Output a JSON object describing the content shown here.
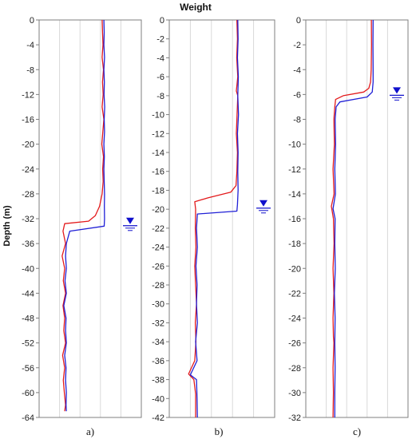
{
  "figure": {
    "title": "Weight",
    "ylabel": "Depth (m)",
    "colors": {
      "series_1": "#e31a1c",
      "series_2": "#1f1fd6",
      "water_table": "#1010cc",
      "grid": "#d9d9d9",
      "frame": "#7f7f7f"
    }
  },
  "chart_data": [
    {
      "type": "line",
      "panel": "a)",
      "ylim": [
        -64,
        0
      ],
      "yticks": [
        0,
        -4,
        -8,
        -12,
        -16,
        -20,
        -24,
        -28,
        -32,
        -36,
        -40,
        -44,
        -48,
        -52,
        -56,
        -60,
        -64
      ],
      "xlim": [
        0,
        6
      ],
      "grid": true,
      "water_table_depth": -33,
      "series": [
        {
          "color": "#e31a1c",
          "points": [
            [
              3.7,
              0
            ],
            [
              3.72,
              -2
            ],
            [
              3.75,
              -4
            ],
            [
              3.7,
              -6
            ],
            [
              3.78,
              -8
            ],
            [
              3.72,
              -10
            ],
            [
              3.76,
              -12
            ],
            [
              3.7,
              -14
            ],
            [
              3.8,
              -16
            ],
            [
              3.74,
              -18
            ],
            [
              3.68,
              -20
            ],
            [
              3.78,
              -22
            ],
            [
              3.73,
              -24
            ],
            [
              3.76,
              -26
            ],
            [
              3.7,
              -28
            ],
            [
              3.55,
              -30
            ],
            [
              3.3,
              -31.5
            ],
            [
              2.9,
              -32.4
            ],
            [
              1.5,
              -32.8
            ],
            [
              1.4,
              -34
            ],
            [
              1.55,
              -36
            ],
            [
              1.35,
              -38
            ],
            [
              1.5,
              -40
            ],
            [
              1.42,
              -42
            ],
            [
              1.55,
              -44
            ],
            [
              1.4,
              -46
            ],
            [
              1.5,
              -48
            ],
            [
              1.45,
              -50
            ],
            [
              1.55,
              -52
            ],
            [
              1.38,
              -54
            ],
            [
              1.5,
              -56
            ],
            [
              1.42,
              -58
            ],
            [
              1.48,
              -60
            ],
            [
              1.55,
              -62
            ],
            [
              1.5,
              -63
            ]
          ]
        },
        {
          "color": "#1f1fd6",
          "points": [
            [
              3.8,
              0
            ],
            [
              3.82,
              -2
            ],
            [
              3.8,
              -4
            ],
            [
              3.84,
              -6
            ],
            [
              3.8,
              -8
            ],
            [
              3.83,
              -10
            ],
            [
              3.81,
              -12
            ],
            [
              3.85,
              -14
            ],
            [
              3.82,
              -16
            ],
            [
              3.84,
              -18
            ],
            [
              3.8,
              -20
            ],
            [
              3.83,
              -22
            ],
            [
              3.8,
              -24
            ],
            [
              3.82,
              -26
            ],
            [
              3.84,
              -28
            ],
            [
              3.83,
              -30
            ],
            [
              3.84,
              -32
            ],
            [
              3.82,
              -33.2
            ],
            [
              1.8,
              -34
            ],
            [
              1.6,
              -36
            ],
            [
              1.55,
              -38
            ],
            [
              1.6,
              -40
            ],
            [
              1.52,
              -42
            ],
            [
              1.6,
              -44
            ],
            [
              1.45,
              -46
            ],
            [
              1.58,
              -48
            ],
            [
              1.55,
              -50
            ],
            [
              1.6,
              -52
            ],
            [
              1.5,
              -54
            ],
            [
              1.58,
              -56
            ],
            [
              1.55,
              -58
            ],
            [
              1.6,
              -60
            ],
            [
              1.58,
              -62
            ],
            [
              1.6,
              -63
            ]
          ]
        }
      ]
    },
    {
      "type": "line",
      "panel": "b)",
      "ylim": [
        -42,
        0
      ],
      "yticks": [
        0,
        -2,
        -4,
        -6,
        -8,
        -10,
        -12,
        -14,
        -16,
        -18,
        -20,
        -22,
        -24,
        -26,
        -28,
        -30,
        -32,
        -34,
        -36,
        -38,
        -40,
        -42
      ],
      "xlim": [
        0,
        6
      ],
      "grid": true,
      "water_table_depth": -19.8,
      "series": [
        {
          "color": "#e31a1c",
          "points": [
            [
              3.85,
              0
            ],
            [
              3.88,
              -2
            ],
            [
              3.84,
              -4
            ],
            [
              3.9,
              -6
            ],
            [
              3.82,
              -7.5
            ],
            [
              3.9,
              -8
            ],
            [
              3.86,
              -10
            ],
            [
              3.82,
              -12
            ],
            [
              3.88,
              -14
            ],
            [
              3.85,
              -16
            ],
            [
              3.8,
              -17.5
            ],
            [
              3.5,
              -18.2
            ],
            [
              2.2,
              -18.8
            ],
            [
              1.45,
              -19.2
            ],
            [
              1.5,
              -20
            ],
            [
              1.48,
              -22
            ],
            [
              1.52,
              -24
            ],
            [
              1.45,
              -26
            ],
            [
              1.5,
              -28
            ],
            [
              1.55,
              -30
            ],
            [
              1.48,
              -32
            ],
            [
              1.52,
              -34
            ],
            [
              1.45,
              -36
            ],
            [
              1.1,
              -37.4
            ],
            [
              1.4,
              -38
            ],
            [
              1.5,
              -39.5
            ],
            [
              1.5,
              -42
            ]
          ]
        },
        {
          "color": "#1f1fd6",
          "points": [
            [
              3.9,
              0
            ],
            [
              3.92,
              -2
            ],
            [
              3.88,
              -4
            ],
            [
              3.93,
              -6
            ],
            [
              3.9,
              -8
            ],
            [
              3.94,
              -10
            ],
            [
              3.88,
              -12
            ],
            [
              3.92,
              -14
            ],
            [
              3.9,
              -16
            ],
            [
              3.92,
              -18
            ],
            [
              3.88,
              -19.5
            ],
            [
              3.85,
              -20.2
            ],
            [
              1.6,
              -20.5
            ],
            [
              1.55,
              -22
            ],
            [
              1.6,
              -24
            ],
            [
              1.52,
              -26
            ],
            [
              1.58,
              -28
            ],
            [
              1.55,
              -30
            ],
            [
              1.6,
              -32
            ],
            [
              1.5,
              -34
            ],
            [
              1.58,
              -36
            ],
            [
              1.2,
              -37.5
            ],
            [
              1.55,
              -38
            ],
            [
              1.58,
              -40
            ],
            [
              1.6,
              -42
            ]
          ]
        }
      ]
    },
    {
      "type": "line",
      "panel": "c)",
      "ylim": [
        -32,
        0
      ],
      "yticks": [
        0,
        -2,
        -4,
        -6,
        -8,
        -10,
        -12,
        -14,
        -16,
        -18,
        -20,
        -22,
        -24,
        -26,
        -28,
        -30,
        -32
      ],
      "xlim": [
        0,
        6
      ],
      "grid": true,
      "water_table_depth": -6,
      "series": [
        {
          "color": "#e31a1c",
          "points": [
            [
              3.85,
              0
            ],
            [
              3.86,
              -2
            ],
            [
              3.84,
              -4
            ],
            [
              3.8,
              -5
            ],
            [
              3.7,
              -5.5
            ],
            [
              3.4,
              -5.8
            ],
            [
              2.2,
              -6.1
            ],
            [
              1.75,
              -6.4
            ],
            [
              1.7,
              -7
            ],
            [
              1.65,
              -8
            ],
            [
              1.68,
              -10
            ],
            [
              1.6,
              -12
            ],
            [
              1.66,
              -14
            ],
            [
              1.5,
              -15
            ],
            [
              1.62,
              -16
            ],
            [
              1.66,
              -18
            ],
            [
              1.6,
              -20
            ],
            [
              1.65,
              -22
            ],
            [
              1.6,
              -24
            ],
            [
              1.62,
              -25.5
            ],
            [
              1.65,
              -26
            ],
            [
              1.6,
              -28
            ],
            [
              1.62,
              -30
            ],
            [
              1.6,
              -32
            ]
          ]
        },
        {
          "color": "#1f1fd6",
          "points": [
            [
              3.95,
              0
            ],
            [
              3.94,
              -2
            ],
            [
              3.95,
              -4
            ],
            [
              3.95,
              -5
            ],
            [
              3.9,
              -5.8
            ],
            [
              3.6,
              -6.2
            ],
            [
              2.0,
              -6.6
            ],
            [
              1.78,
              -7
            ],
            [
              1.72,
              -8
            ],
            [
              1.75,
              -10
            ],
            [
              1.7,
              -12
            ],
            [
              1.74,
              -14
            ],
            [
              1.6,
              -15.2
            ],
            [
              1.72,
              -16
            ],
            [
              1.7,
              -18
            ],
            [
              1.73,
              -20
            ],
            [
              1.68,
              -22
            ],
            [
              1.72,
              -24
            ],
            [
              1.7,
              -26
            ],
            [
              1.72,
              -28
            ],
            [
              1.7,
              -30
            ],
            [
              1.7,
              -32
            ]
          ]
        }
      ]
    }
  ]
}
